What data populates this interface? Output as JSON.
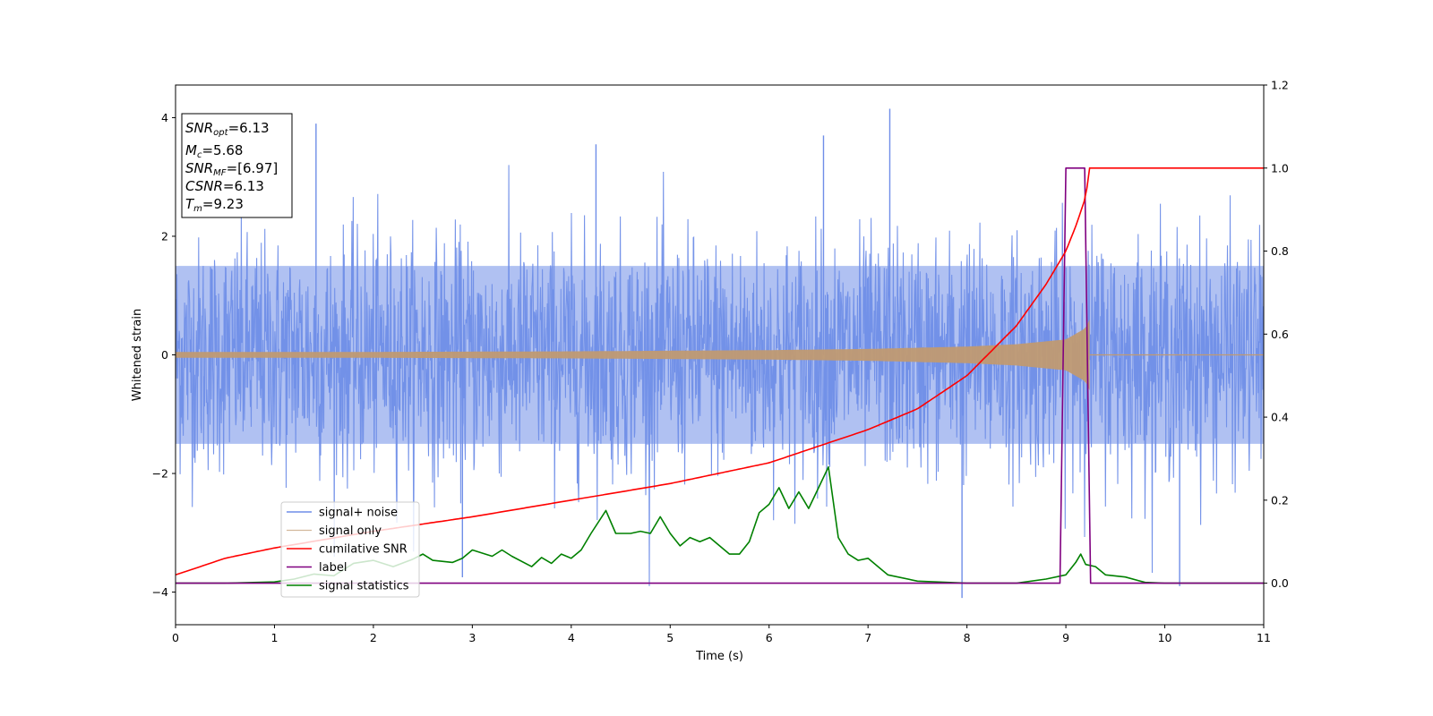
{
  "chart_data": {
    "type": "line",
    "title": "",
    "xlabel": "Time (s)",
    "ylabel": "Whitened strain",
    "xlim": [
      0,
      11
    ],
    "ylim": [
      -4.55,
      4.55
    ],
    "y2lim": [
      -0.1,
      1.2
    ],
    "x_ticks": [
      "0",
      "1",
      "2",
      "3",
      "4",
      "5",
      "6",
      "7",
      "8",
      "9",
      "10",
      "11"
    ],
    "y_ticks": [
      "−4",
      "−2",
      "0",
      "2",
      "4"
    ],
    "y2_ticks": [
      "0.0",
      "0.2",
      "0.4",
      "0.6",
      "0.8",
      "1.0",
      "1.2"
    ],
    "grid": false,
    "legend_position": "lower-left",
    "series": [
      {
        "name": "signal+ noise",
        "axis": "left",
        "color": "#6f8ee8",
        "style": "noise band",
        "x_range": [
          0,
          11
        ],
        "typical_abs": 2.0,
        "max_peak": 4.15,
        "min_peak": -4.1
      },
      {
        "name": "signal only",
        "axis": "left",
        "color": "#c09a72",
        "style": "chirp envelope",
        "x": [
          0,
          2,
          4,
          6,
          7,
          8,
          8.5,
          9.0,
          9.2,
          9.24
        ],
        "amplitude": [
          0.05,
          0.05,
          0.06,
          0.08,
          0.1,
          0.14,
          0.18,
          0.26,
          0.45,
          0.6
        ]
      },
      {
        "name": "cumilative SNR",
        "axis": "right",
        "color": "#ff0000",
        "x": [
          0,
          0.5,
          1,
          2,
          3,
          4,
          5,
          6,
          7,
          7.5,
          8,
          8.5,
          8.8,
          9.0,
          9.1,
          9.2,
          9.24,
          11
        ],
        "values": [
          0.02,
          0.06,
          0.085,
          0.125,
          0.16,
          0.2,
          0.24,
          0.29,
          0.37,
          0.42,
          0.5,
          0.62,
          0.72,
          0.8,
          0.86,
          0.93,
          1.0,
          1.0
        ]
      },
      {
        "name": "label",
        "axis": "right",
        "color": "#800080",
        "x": [
          0,
          8.94,
          9.0,
          9.19,
          9.25,
          11
        ],
        "values": [
          0.0,
          0.0,
          1.0,
          1.0,
          0.0,
          0.0
        ]
      },
      {
        "name": "signal statistics",
        "axis": "right",
        "color": "#008000",
        "x": [
          0,
          0.5,
          1.0,
          1.2,
          1.4,
          1.6,
          1.8,
          2.0,
          2.2,
          2.4,
          2.5,
          2.6,
          2.8,
          2.9,
          3.0,
          3.2,
          3.3,
          3.4,
          3.6,
          3.7,
          3.8,
          3.9,
          4.0,
          4.1,
          4.2,
          4.35,
          4.45,
          4.6,
          4.7,
          4.8,
          4.9,
          5.0,
          5.1,
          5.2,
          5.3,
          5.4,
          5.5,
          5.6,
          5.7,
          5.8,
          5.9,
          6.0,
          6.1,
          6.2,
          6.3,
          6.35,
          6.4,
          6.5,
          6.6,
          6.7,
          6.8,
          6.9,
          7.0,
          7.2,
          7.5,
          8.0,
          8.5,
          8.8,
          9.0,
          9.1,
          9.15,
          9.2,
          9.3,
          9.4,
          9.6,
          9.8,
          10.0,
          11.0
        ],
        "values": [
          0.0,
          0.0,
          0.003,
          0.01,
          0.022,
          0.018,
          0.048,
          0.055,
          0.04,
          0.058,
          0.07,
          0.055,
          0.05,
          0.06,
          0.08,
          0.065,
          0.08,
          0.065,
          0.04,
          0.062,
          0.048,
          0.07,
          0.06,
          0.08,
          0.12,
          0.175,
          0.12,
          0.12,
          0.125,
          0.12,
          0.16,
          0.12,
          0.09,
          0.11,
          0.1,
          0.11,
          0.09,
          0.07,
          0.07,
          0.1,
          0.17,
          0.19,
          0.23,
          0.18,
          0.22,
          0.2,
          0.18,
          0.23,
          0.28,
          0.11,
          0.07,
          0.055,
          0.06,
          0.02,
          0.005,
          0.0,
          0.0,
          0.01,
          0.02,
          0.05,
          0.07,
          0.045,
          0.04,
          0.02,
          0.015,
          0.002,
          0.0,
          0.0
        ]
      }
    ],
    "annotation": {
      "snr_opt": "=6.13",
      "mc": "=5.68",
      "snr_mf": "=[6.97]",
      "csnr": "=6.13",
      "tm": "=9.23"
    }
  }
}
